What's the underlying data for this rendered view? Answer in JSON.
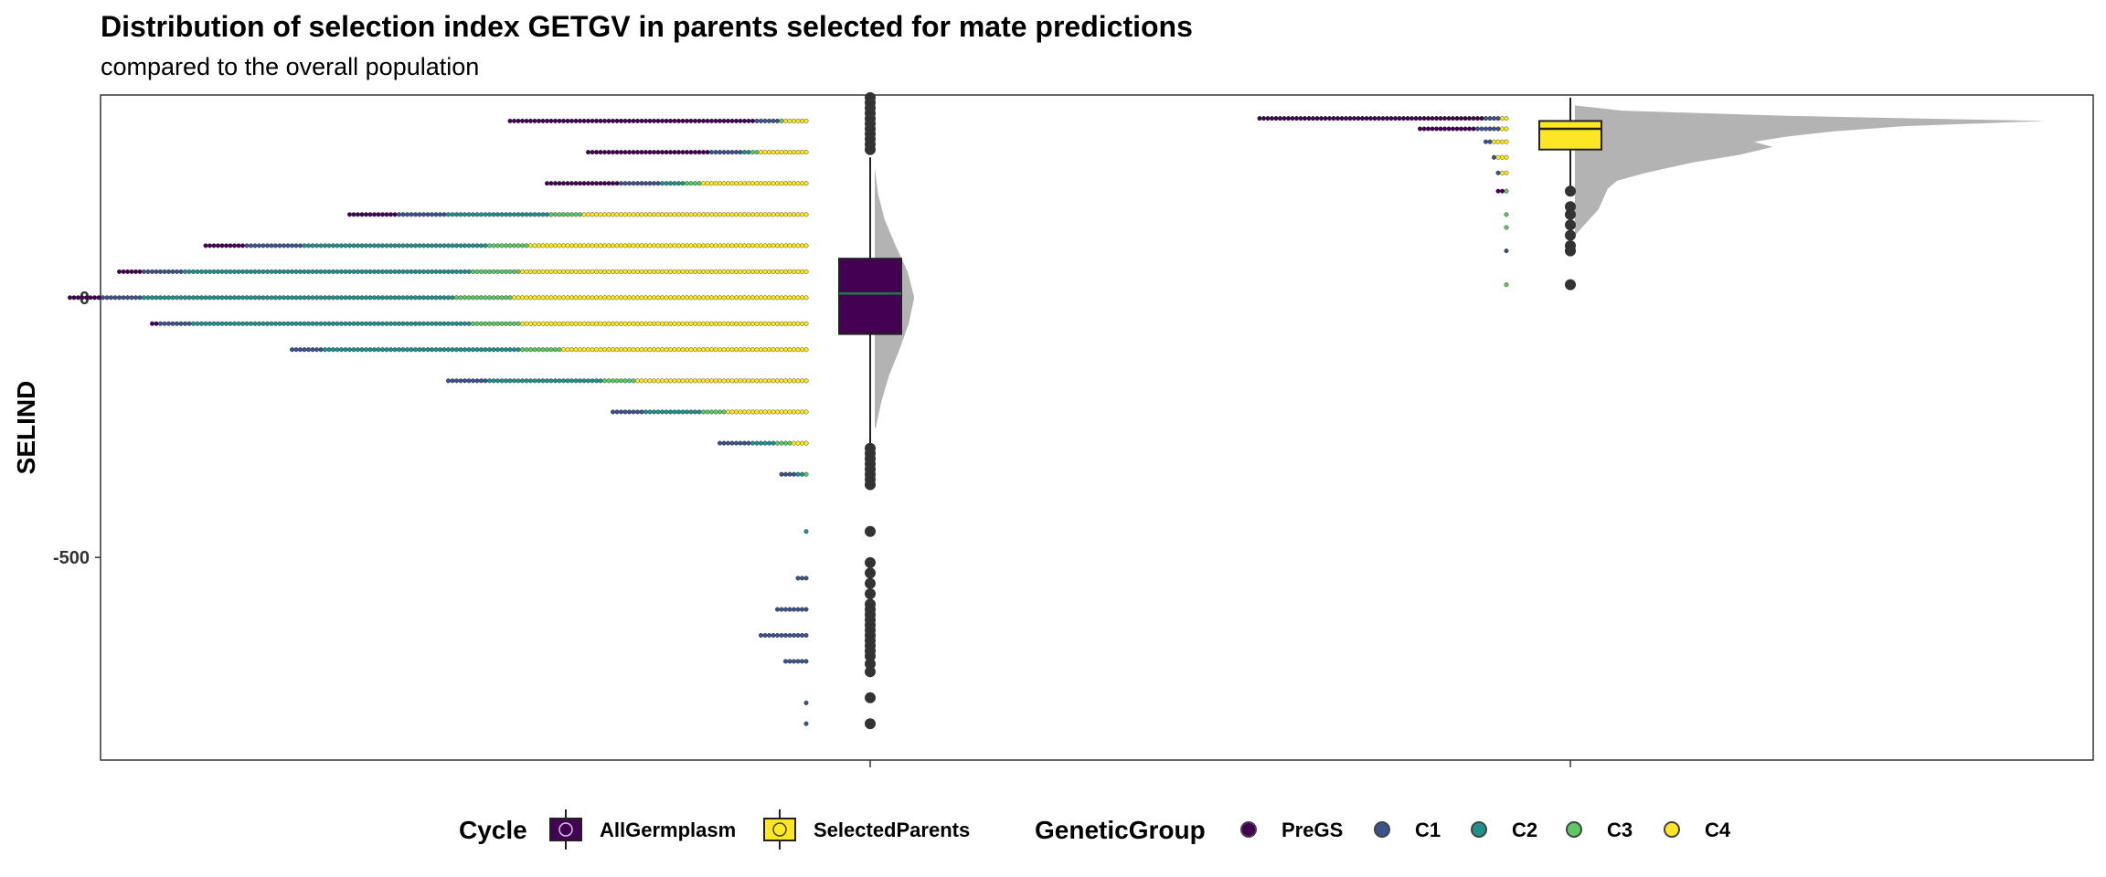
{
  "chart_data": {
    "type": "raincloud",
    "title": "Distribution of selection index GETGV in parents selected for mate predictions",
    "subtitle": "compared to the overall population",
    "ylabel": "SELIND",
    "xlabel": "",
    "ylim": [
      -890,
      390
    ],
    "y_ticks": [
      {
        "value": 0,
        "label": "0"
      },
      {
        "value": -500,
        "label": "-500"
      }
    ],
    "grid": false,
    "legend_position": "bottom",
    "groups": [
      {
        "name": "AllGermplasm",
        "fill": "#440154",
        "box": {
          "q1": -70,
          "median": 8,
          "q3": 75,
          "whisker_low": -280,
          "whisker_high": 270
        },
        "outliers": [
          385,
          375,
          365,
          355,
          345,
          335,
          325,
          315,
          305,
          295,
          285,
          -290,
          -300,
          -310,
          -320,
          -330,
          -340,
          -350,
          -360,
          -450,
          -510,
          -530,
          -550,
          -570,
          -590,
          -600,
          -610,
          -620,
          -630,
          -640,
          -650,
          -660,
          -670,
          -680,
          -690,
          -705,
          -720,
          -770,
          -820
        ],
        "density": [
          [
            -250,
            0.02
          ],
          [
            -200,
            0.12
          ],
          [
            -150,
            0.26
          ],
          [
            -100,
            0.45
          ],
          [
            -50,
            0.62
          ],
          [
            0,
            0.72
          ],
          [
            50,
            0.6
          ],
          [
            100,
            0.38
          ],
          [
            150,
            0.18
          ],
          [
            200,
            0.06
          ],
          [
            250,
            0.0
          ]
        ]
      },
      {
        "name": "SelectedParents",
        "fill": "#FDE725",
        "box": {
          "q1": 285,
          "median": 325,
          "q3": 340,
          "whisker_low": 210,
          "whisker_high": 385
        },
        "outliers": [
          205,
          175,
          160,
          140,
          120,
          100,
          90,
          25
        ],
        "density": [
          [
            120,
            0.0
          ],
          [
            150,
            0.03
          ],
          [
            170,
            0.05
          ],
          [
            190,
            0.06
          ],
          [
            210,
            0.07
          ],
          [
            225,
            0.09
          ],
          [
            240,
            0.15
          ],
          [
            260,
            0.25
          ],
          [
            275,
            0.35
          ],
          [
            290,
            0.42
          ],
          [
            300,
            0.38
          ],
          [
            310,
            0.45
          ],
          [
            320,
            0.55
          ],
          [
            330,
            0.7
          ],
          [
            340,
            1.0
          ],
          [
            350,
            0.45
          ],
          [
            360,
            0.1
          ],
          [
            370,
            0.0
          ]
        ]
      }
    ],
    "dot_stacks": [
      {
        "group": "AllGermplasm",
        "genetic_group_rows": [
          {
            "y": 340,
            "C4": 6,
            "C3": 1,
            "C1": 6,
            "PreGS": 60
          },
          {
            "y": 280,
            "C4": 12,
            "C3": 2,
            "C2": 2,
            "C1": 8,
            "PreGS": 30
          },
          {
            "y": 220,
            "C4": 26,
            "C3": 4,
            "C2": 6,
            "C1": 10,
            "PreGS": 18
          },
          {
            "y": 160,
            "C4": 55,
            "C3": 8,
            "C2": 25,
            "C1": 12,
            "PreGS": 12
          },
          {
            "y": 100,
            "C4": 68,
            "C3": 10,
            "C2": 45,
            "C1": 14,
            "PreGS": 10
          },
          {
            "y": 50,
            "C4": 70,
            "C3": 12,
            "C2": 70,
            "C1": 10,
            "PreGS": 6
          },
          {
            "y": 0,
            "C4": 72,
            "C3": 14,
            "C2": 76,
            "C1": 10,
            "PreGS": 8
          },
          {
            "y": -50,
            "C4": 70,
            "C3": 12,
            "C2": 68,
            "C1": 8,
            "PreGS": 2
          },
          {
            "y": -100,
            "C4": 60,
            "C3": 10,
            "C2": 48,
            "C1": 8
          },
          {
            "y": -160,
            "C4": 42,
            "C3": 8,
            "C2": 28,
            "C1": 10
          },
          {
            "y": -220,
            "C4": 20,
            "C3": 6,
            "C2": 14,
            "C1": 8
          },
          {
            "y": -280,
            "C4": 4,
            "C3": 4,
            "C2": 6,
            "C1": 8
          },
          {
            "y": -340,
            "C3": 1,
            "C2": 2,
            "C1": 4
          },
          {
            "y": -450,
            "C2": 1
          },
          {
            "y": -540,
            "C1": 3
          },
          {
            "y": -600,
            "C1": 8
          },
          {
            "y": -650,
            "C1": 12
          },
          {
            "y": -700,
            "C1": 6
          },
          {
            "y": -780,
            "C1": 1
          },
          {
            "y": -820,
            "C1": 1
          }
        ]
      },
      {
        "group": "SelectedParents",
        "genetic_group_rows": [
          {
            "y": 345,
            "C4": 2,
            "C1": 4,
            "PreGS": 55
          },
          {
            "y": 325,
            "C4": 2,
            "C1": 6,
            "PreGS": 14
          },
          {
            "y": 300,
            "C4": 4,
            "C1": 2
          },
          {
            "y": 270,
            "C4": 3,
            "C1": 1
          },
          {
            "y": 240,
            "C4": 2,
            "C1": 1
          },
          {
            "y": 205,
            "PreGS": 2,
            "C3": 1
          },
          {
            "y": 160,
            "C3": 1
          },
          {
            "y": 135,
            "C3": 1
          },
          {
            "y": 90,
            "C1": 1
          },
          {
            "y": 25,
            "C3": 1
          }
        ]
      }
    ]
  },
  "legend": {
    "cycle_title": "Cycle",
    "cycle_items": [
      {
        "label": "AllGermplasm",
        "fill": "#440154"
      },
      {
        "label": "SelectedParents",
        "fill": "#FDE725"
      }
    ],
    "genetic_title": "GeneticGroup",
    "genetic_items": [
      {
        "label": "PreGS",
        "fill": "#440154"
      },
      {
        "label": "C1",
        "fill": "#3B528B"
      },
      {
        "label": "C2",
        "fill": "#21908C"
      },
      {
        "label": "C3",
        "fill": "#5DC863"
      },
      {
        "label": "C4",
        "fill": "#FDE725"
      }
    ]
  },
  "colors": {
    "PreGS": "#440154",
    "C1": "#3B528B",
    "C2": "#21908C",
    "C3": "#5DC863",
    "C4": "#FDE725",
    "density": "#b3b3b3",
    "outlier": "#333333"
  }
}
